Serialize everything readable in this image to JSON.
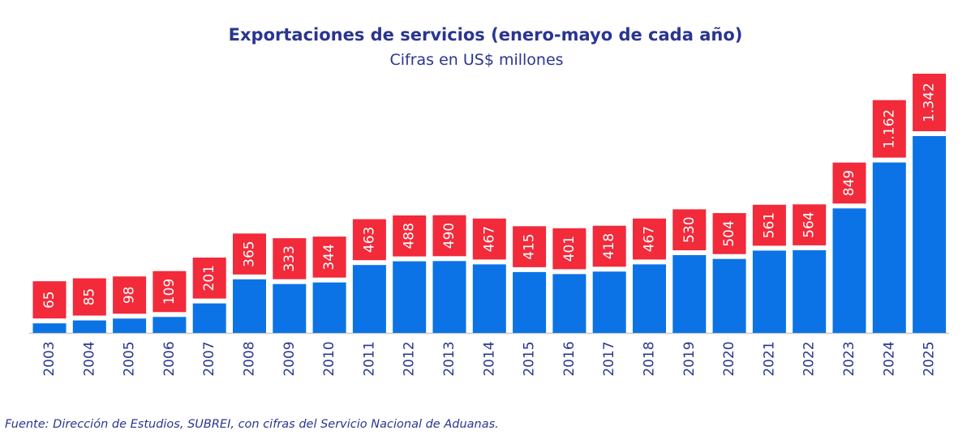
{
  "chart_data": {
    "type": "bar",
    "title": "Exportaciones de servicios (enero-mayo de cada año)",
    "subtitle": "Cifras en US$ millones",
    "xlabel": "",
    "ylabel": "",
    "ylim": [
      0,
      1342
    ],
    "grid": false,
    "categories": [
      "2003",
      "2004",
      "2005",
      "2006",
      "2007",
      "2008",
      "2009",
      "2010",
      "2011",
      "2012",
      "2013",
      "2014",
      "2015",
      "2016",
      "2017",
      "2018",
      "2019",
      "2020",
      "2021",
      "2022",
      "2023",
      "2024",
      "2025"
    ],
    "values": [
      65,
      85,
      98,
      109,
      201,
      365,
      333,
      344,
      463,
      488,
      490,
      467,
      415,
      401,
      418,
      467,
      530,
      504,
      561,
      564,
      849,
      1162,
      1342
    ],
    "value_labels": [
      "65",
      "85",
      "98",
      "109",
      "201",
      "365",
      "333",
      "344",
      "463",
      "488",
      "490",
      "467",
      "415",
      "401",
      "418",
      "467",
      "530",
      "504",
      "561",
      "564",
      "849",
      "1.162",
      "1.342"
    ],
    "bar_color": "#0b73e6",
    "label_bg_color": "#f22a3a",
    "label_text_color": "#ffffff",
    "axis_color": "#c8c8c8",
    "tick_label_color": "#2a3590"
  },
  "source": "Fuente: Dirección de Estudios, SUBREI, con cifras del Servicio Nacional de Aduanas."
}
